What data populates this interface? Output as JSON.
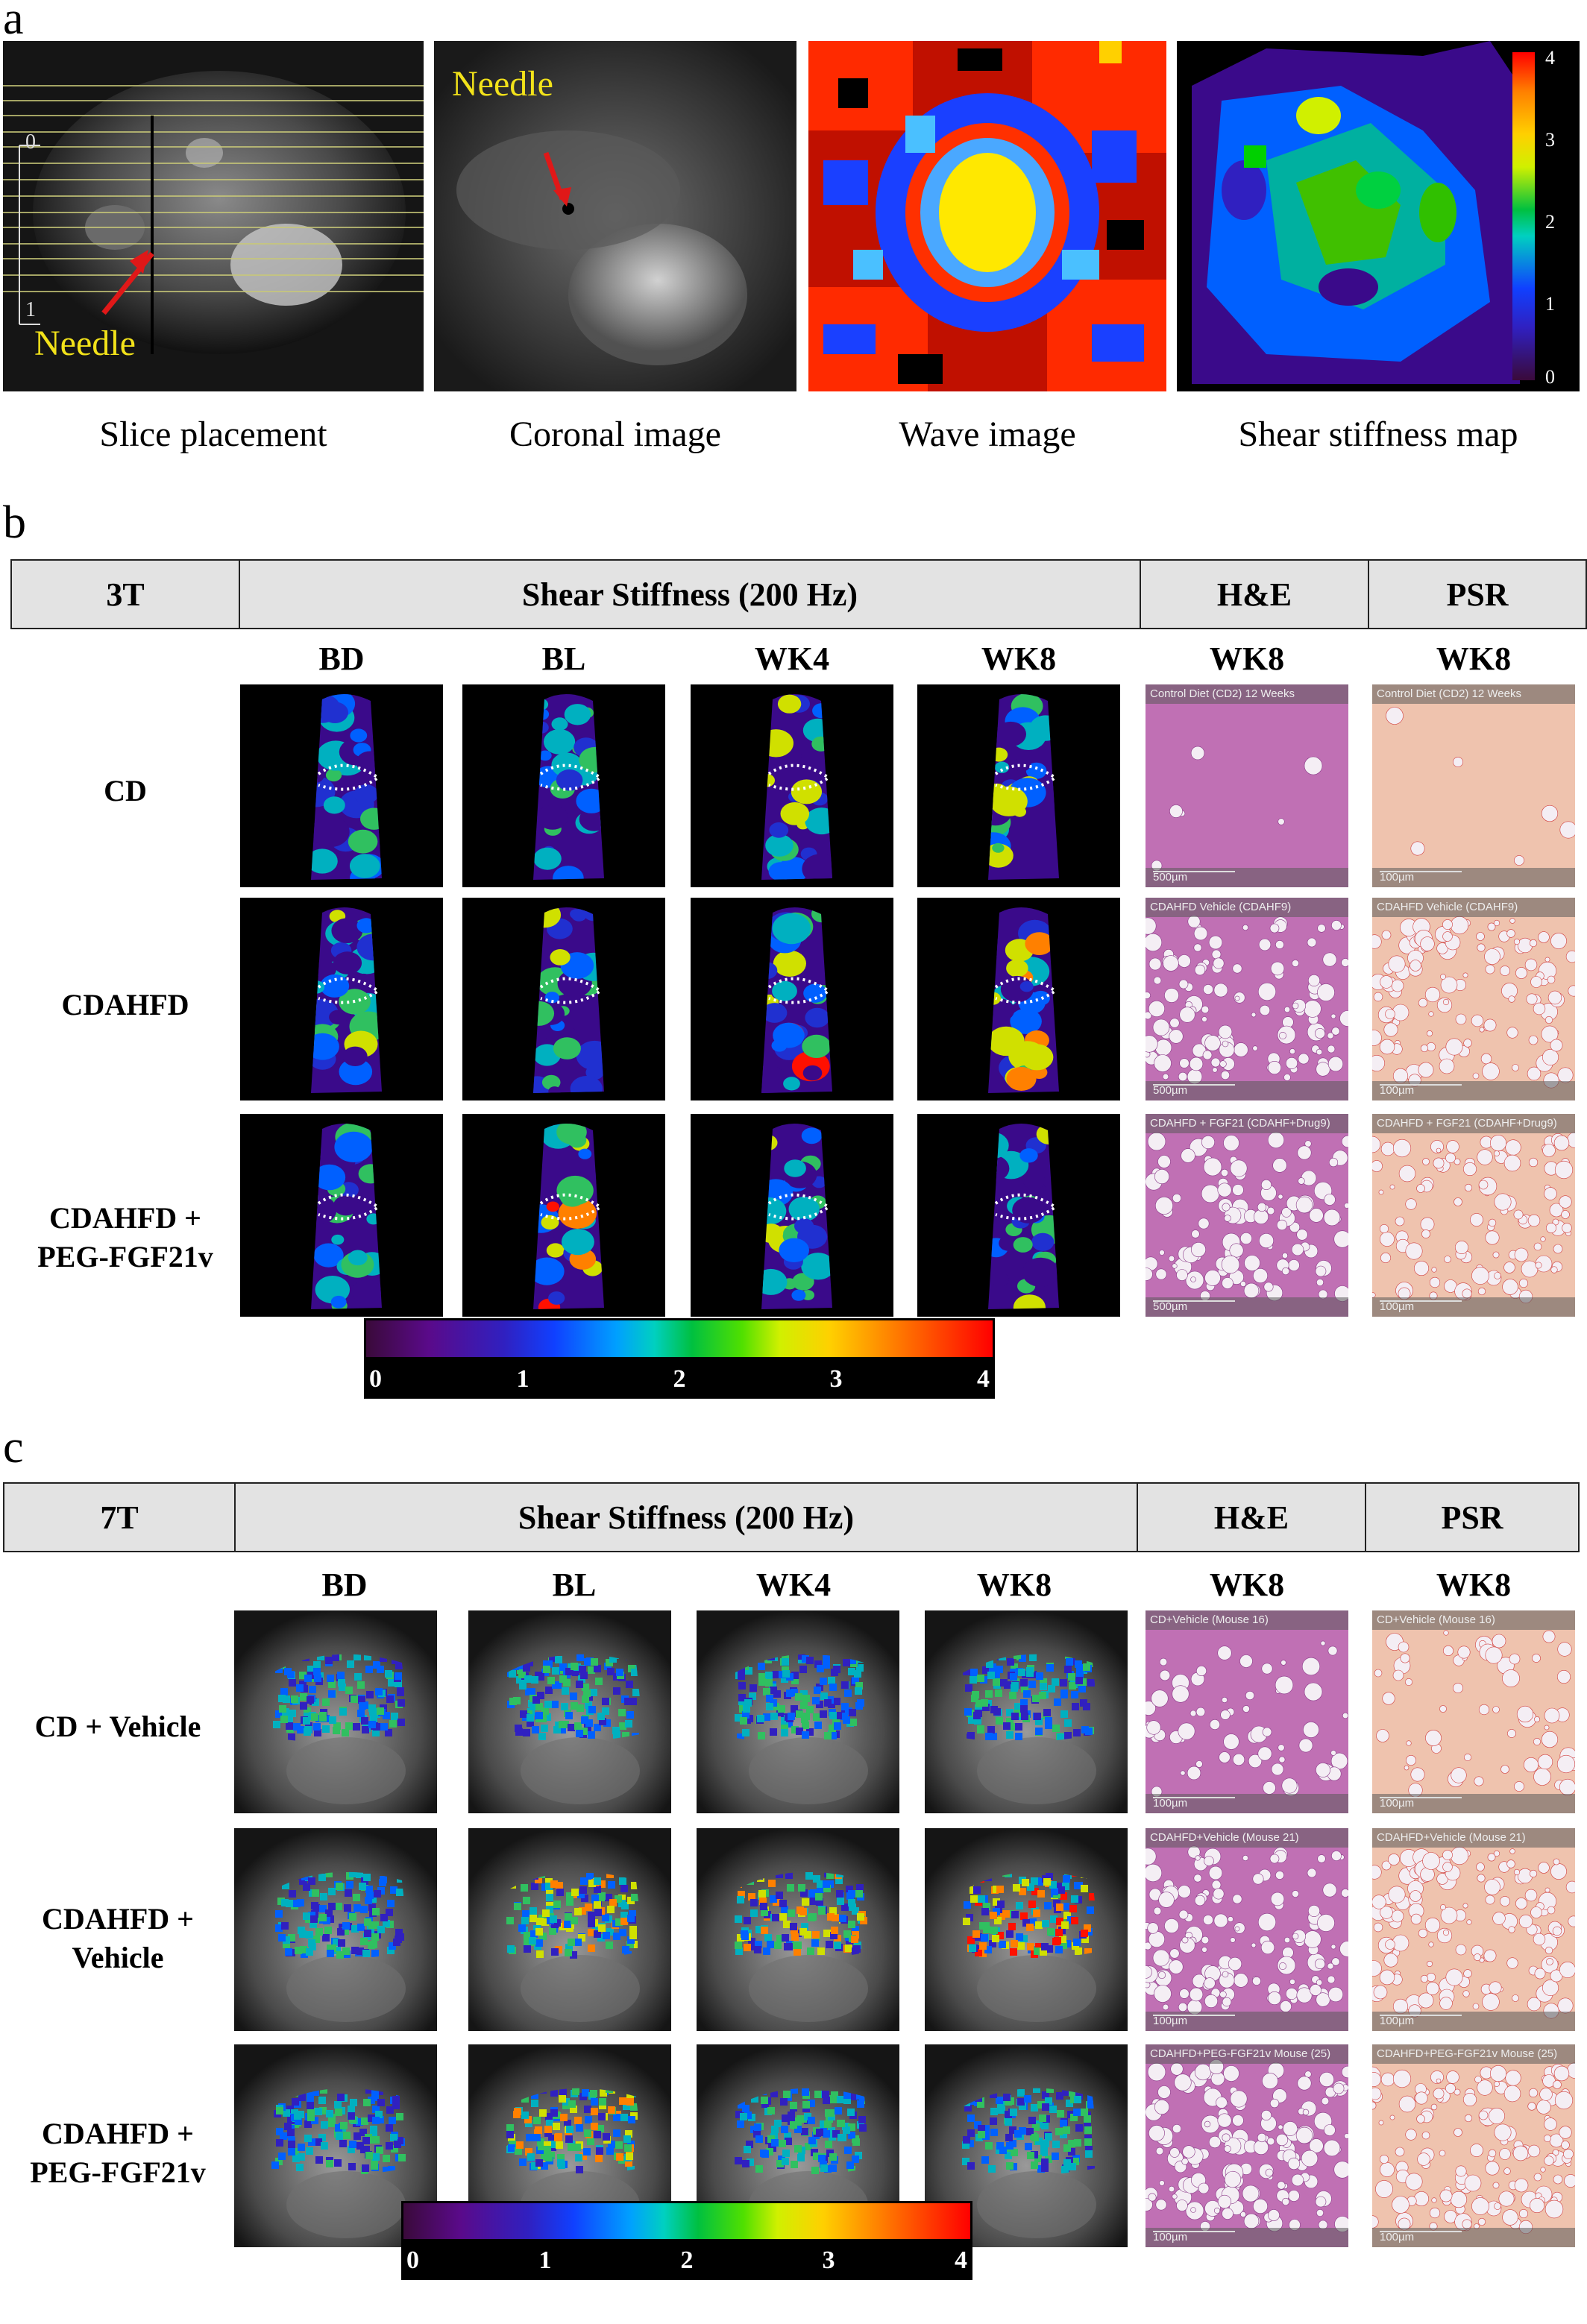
{
  "panel_a": {
    "letter": "a",
    "images": [
      {
        "caption": "Slice placement",
        "annotation": "Needle",
        "ruler_top": "0",
        "ruler_bottom": "1"
      },
      {
        "caption": "Coronal image",
        "annotation": "Needle"
      },
      {
        "caption": "Wave image"
      },
      {
        "caption": "Shear stiffness map",
        "colorbar_ticks": [
          "4",
          "3",
          "2",
          "1",
          "0"
        ]
      }
    ]
  },
  "panel_b": {
    "letter": "b",
    "header": [
      "3T",
      "Shear Stiffness (200 Hz)",
      "H&E",
      "PSR"
    ],
    "columns": [
      "BD",
      "BL",
      "WK4",
      "WK8",
      "WK8",
      "WK8"
    ],
    "rows": [
      {
        "label": "CD",
        "he_label": "Control Diet (CD2) 12 Weeks",
        "he_scale": "500µm",
        "psr_label": "Control Diet (CD2) 12 Weeks",
        "psr_scale": "100µm"
      },
      {
        "label": "CDAHFD",
        "he_label": "CDAHFD Vehicle (CDAHF9)",
        "he_scale": "500µm",
        "psr_label": "CDAHFD Vehicle (CDAHF9)",
        "psr_scale": "100µm"
      },
      {
        "label": "CDAHFD +\nPEG-FGF21v",
        "he_label": "CDAHFD + FGF21 (CDAHF+Drug9)",
        "he_scale": "500µm",
        "psr_label": "CDAHFD + FGF21 (CDAHF+Drug9)",
        "psr_scale": "100µm"
      }
    ],
    "colorbar_ticks": [
      "0",
      "1",
      "2",
      "3",
      "4"
    ]
  },
  "panel_c": {
    "letter": "c",
    "header": [
      "7T",
      "Shear Stiffness (200 Hz)",
      "H&E",
      "PSR"
    ],
    "columns": [
      "BD",
      "BL",
      "WK4",
      "WK8",
      "WK8",
      "WK8"
    ],
    "rows": [
      {
        "label": "CD + Vehicle",
        "he_label": "CD+Vehicle (Mouse 16)",
        "he_scale": "100µm",
        "psr_label": "CD+Vehicle (Mouse 16)",
        "psr_scale": "100µm"
      },
      {
        "label": "CDAHFD +\nVehicle",
        "he_label": "CDAHFD+Vehicle (Mouse 21)",
        "he_scale": "100µm",
        "psr_label": "CDAHFD+Vehicle (Mouse 21)",
        "psr_scale": "100µm"
      },
      {
        "label": "CDAHFD +\nPEG-FGF21v",
        "he_label": "CDAHFD+PEG-FGF21v Mouse (25)",
        "he_scale": "100µm",
        "psr_label": "CDAHFD+PEG-FGF21v Mouse (25)",
        "psr_scale": "100µm"
      }
    ],
    "colorbar_ticks": [
      "0",
      "1",
      "2",
      "3",
      "4"
    ]
  },
  "colors": {
    "needle_text": "#f2e21a",
    "arrow": "#e01818",
    "header_bg": "#e3e3e3",
    "he_tissue": "#b45aa8",
    "psr_tissue": "#e8b39a"
  }
}
